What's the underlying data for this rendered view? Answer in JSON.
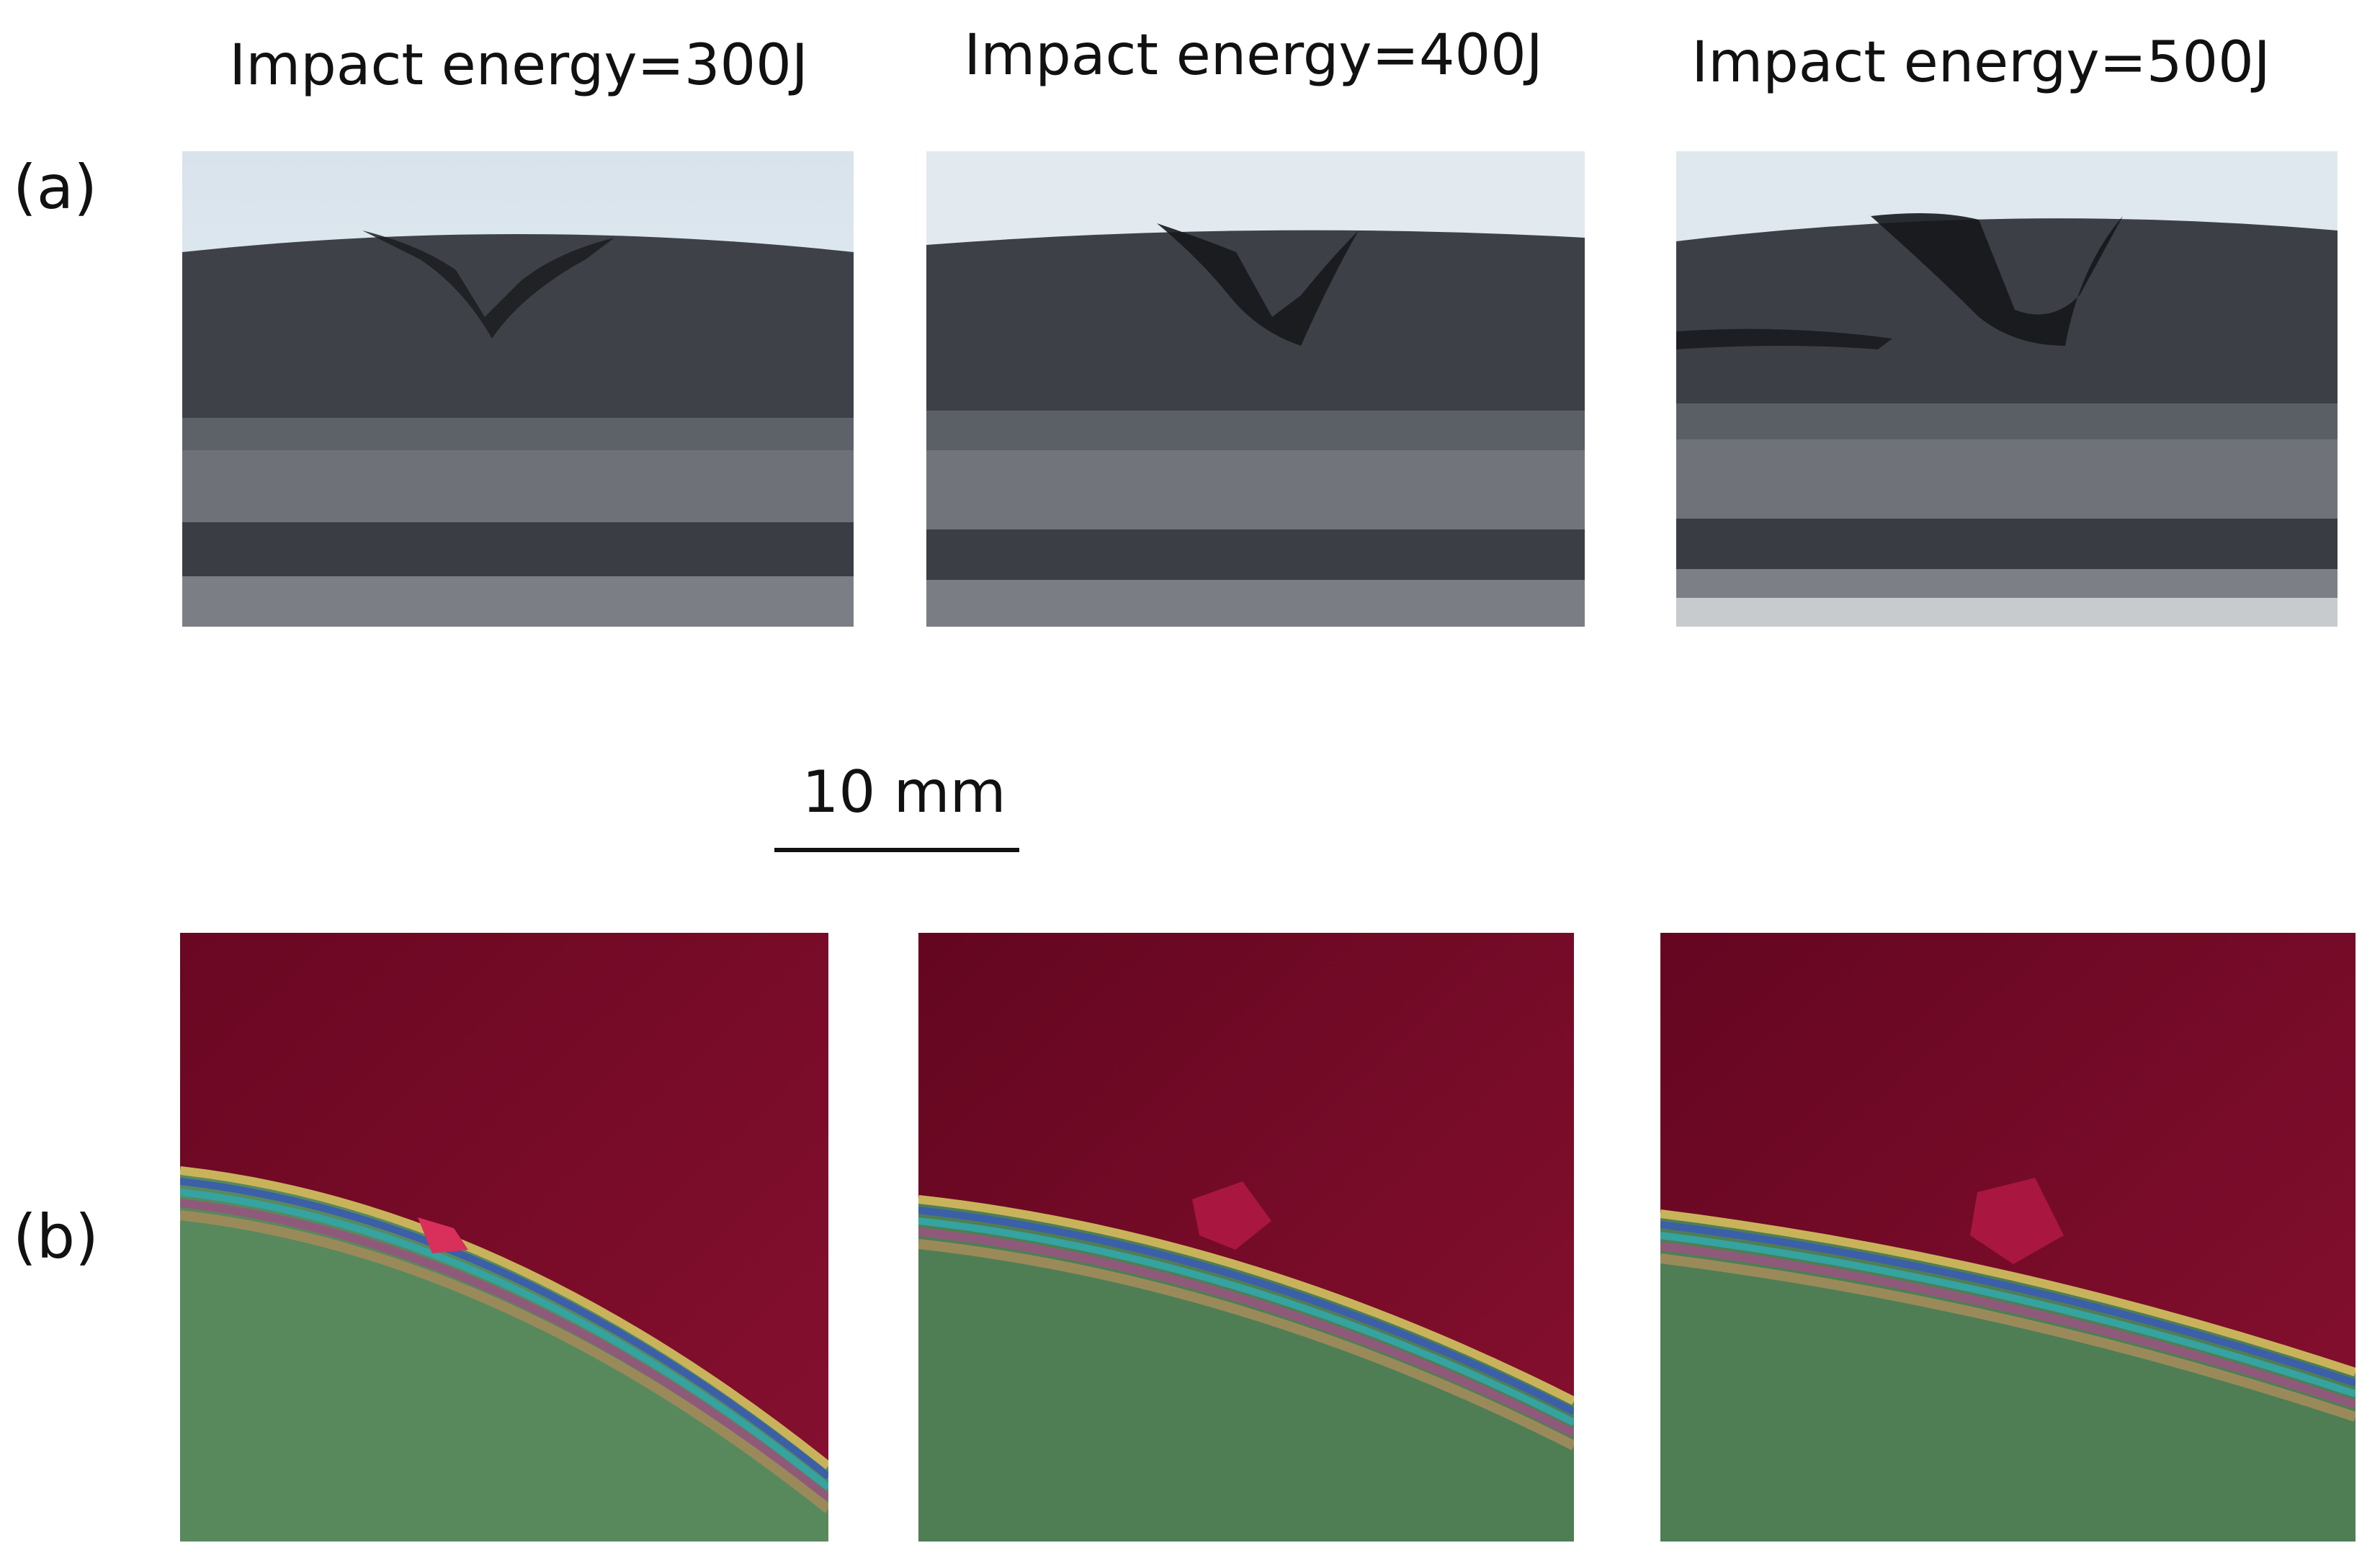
{
  "figure": {
    "columns": [
      {
        "title": "Impact energy=300J"
      },
      {
        "title": "Impact energy=400J"
      },
      {
        "title": "Impact energy=500J"
      }
    ],
    "rows": [
      {
        "label": "(a)"
      },
      {
        "label": "(b)"
      }
    ],
    "scale_bar": {
      "label": "10 mm"
    },
    "colors": {
      "specimen_dark": "#3d4046",
      "specimen_light": "#6f7379",
      "sky": "#dfe8ef",
      "impactor_red": "#7a0a28",
      "base_green": "#4f7e55"
    }
  }
}
